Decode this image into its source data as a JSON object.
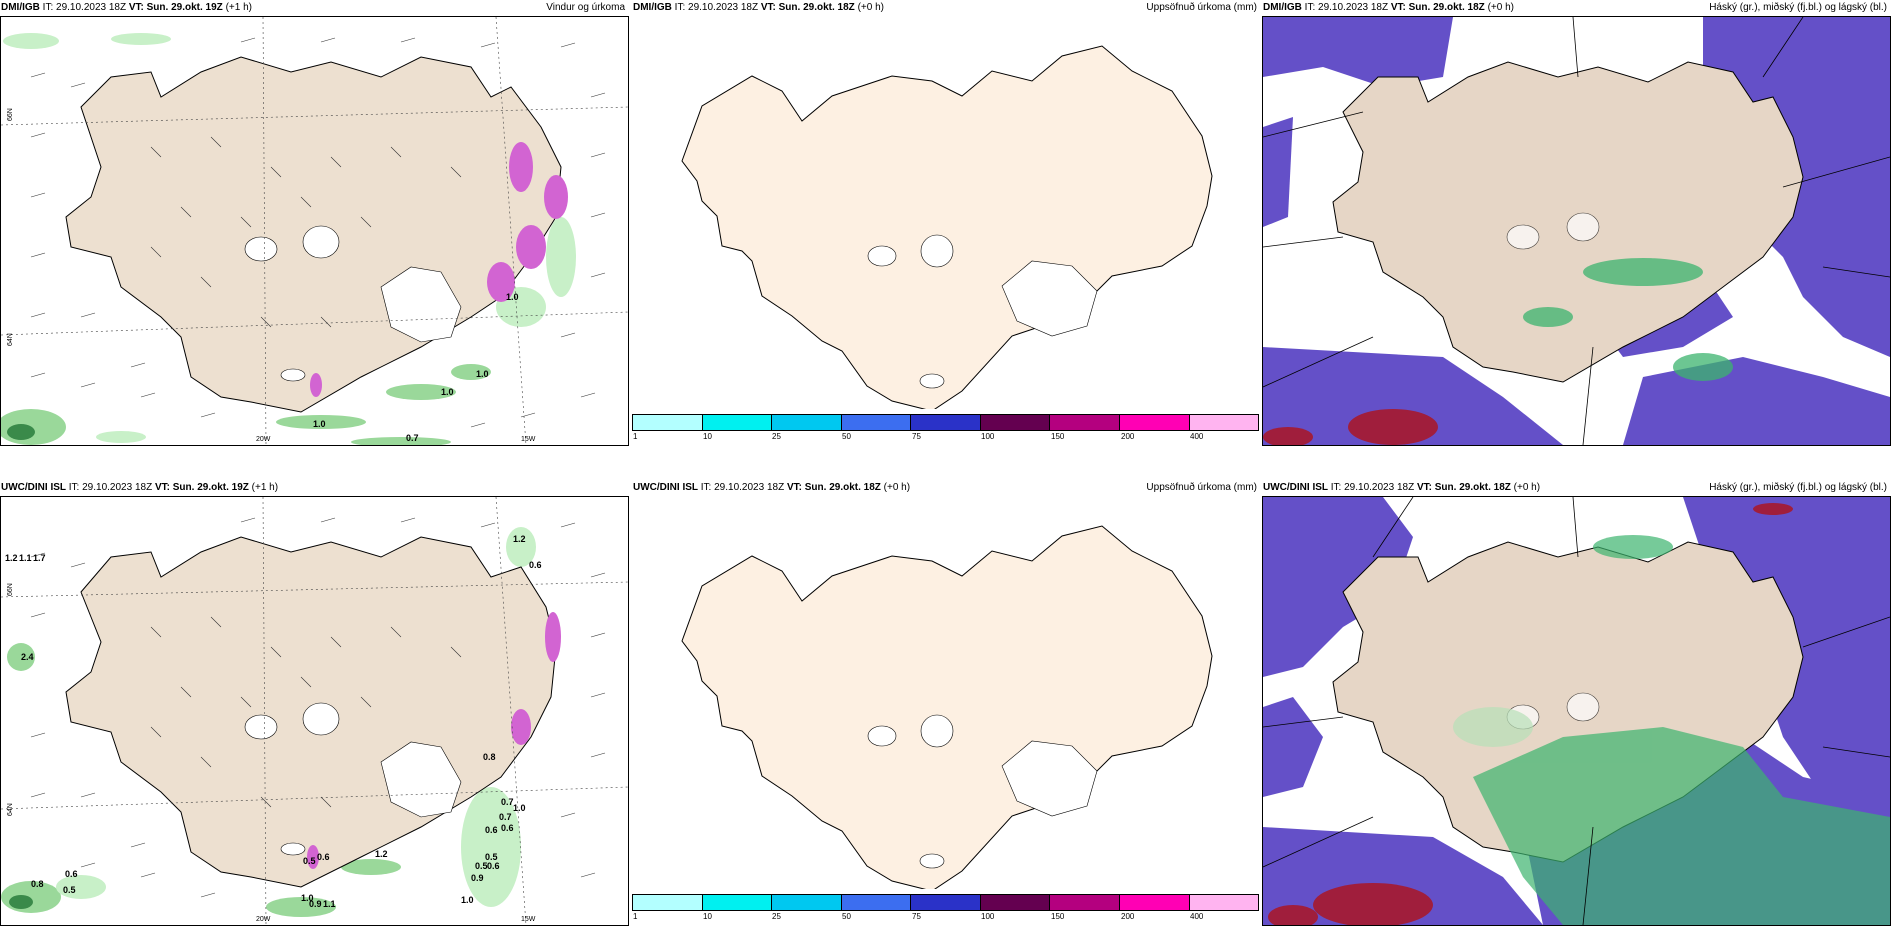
{
  "panels": [
    {
      "model": "DMI/IGB",
      "it_label": "IT:",
      "it_value": "29.10.2023 18Z",
      "vt_label": "VT:",
      "vt_value": "Sun. 29.okt. 19Z",
      "lead": "(+1 h)",
      "title": "Vindur og úrkoma",
      "lat_labels": [
        "66N",
        "64N"
      ],
      "lon_labels": [
        "20W",
        "15W"
      ],
      "precip_labels": [
        "1.0",
        "1.0",
        "0.7",
        "1.0",
        "1.0"
      ]
    },
    {
      "model": "DMI/IGB",
      "it_label": "IT:",
      "it_value": "29.10.2023 18Z",
      "vt_label": "VT:",
      "vt_value": "Sun. 29.okt. 18Z",
      "lead": "(+0 h)",
      "title": "Uppsöfnuð úrkoma (mm)",
      "colorbar": {
        "colors": [
          "#b3ffff",
          "#00f0f0",
          "#00c8f0",
          "#3c6ef0",
          "#2a32c8",
          "#640050",
          "#b4007f",
          "#ff00b4",
          "#ffb4f0"
        ],
        "ticks": [
          "1",
          "10",
          "25",
          "50",
          "75",
          "100",
          "150",
          "200",
          "400"
        ]
      }
    },
    {
      "model": "DMI/IGB",
      "it_label": "IT:",
      "it_value": "29.10.2023 18Z",
      "vt_label": "VT:",
      "vt_value": "Sun. 29.okt. 18Z",
      "lead": "(+0 h)",
      "title": "Háský (gr.), miðský (fj.bl.) og lágský (bl.)"
    },
    {
      "model": "UWC/DINI ISL",
      "it_label": "IT:",
      "it_value": "29.10.2023 18Z",
      "vt_label": "VT:",
      "vt_value": "Sun. 29.okt. 19Z",
      "lead": "(+1 h)",
      "title": "",
      "lat_labels": [
        "66N",
        "64N"
      ],
      "lon_labels": [
        "20W",
        "15W"
      ],
      "precip_labels": [
        "1.2",
        "1.1",
        "1.7",
        "1.2",
        "0.6",
        "2.4",
        "0.8",
        "0.7",
        "1.0",
        "0.7",
        "0.6",
        "0.6",
        "0.5",
        "0.9",
        "0.6",
        "0.5",
        "1.0",
        "0.5",
        "0.6",
        "1.2",
        "0.6",
        "0.8",
        "0.5",
        "1.0",
        "0.9",
        "1.1"
      ]
    },
    {
      "model": "UWC/DINI ISL",
      "it_label": "IT:",
      "it_value": "29.10.2023 18Z",
      "vt_label": "VT:",
      "vt_value": "Sun. 29.okt. 18Z",
      "lead": "(+0 h)",
      "title": "Uppsöfnuð úrkoma (mm)",
      "colorbar": {
        "colors": [
          "#b3ffff",
          "#00f0f0",
          "#00c8f0",
          "#3c6ef0",
          "#2a32c8",
          "#640050",
          "#b4007f",
          "#ff00b4",
          "#ffb4f0"
        ],
        "ticks": [
          "1",
          "10",
          "25",
          "50",
          "75",
          "100",
          "150",
          "200",
          "400"
        ]
      }
    },
    {
      "model": "UWC/DINI ISL",
      "it_label": "IT:",
      "it_value": "29.10.2023 18Z",
      "vt_label": "VT:",
      "vt_value": "Sun. 29.okt. 18Z",
      "lead": "(+0 h)",
      "title": "Háský (gr.), miðský (fj.bl.) og lágský (bl.)"
    }
  ],
  "colors": {
    "land_wind": "#ede0d0",
    "land_precip": "#fdf0e2",
    "land_cloud": "#e6d6c6",
    "high_cloud": "#3cb46e",
    "mid_cloud": "#6450c8",
    "low_cloud": "#a01e3c",
    "precip": "#c8f0c8",
    "snow": "#d264d2"
  }
}
